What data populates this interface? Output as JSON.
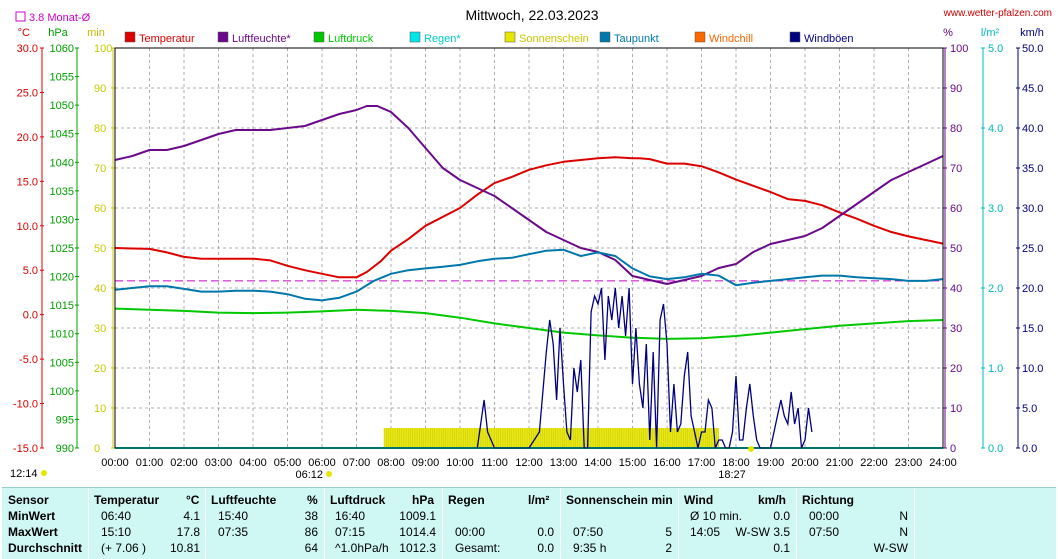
{
  "header": {
    "title": "Mittwoch, 22.03.2023",
    "site": "www.wetter-pfalzen.com",
    "avg_label": "3.8 Monat-Ø",
    "sunrise_time": "06:12",
    "sunset_time": "18:27",
    "sunrise_bottom": "12:14"
  },
  "axes": {
    "temp": {
      "unit": "°C",
      "min": -15,
      "max": 30,
      "ticks": [
        "30.0",
        "25.0",
        "20.0",
        "15.0",
        "10.0",
        "5.0",
        "0.0",
        "-5.0",
        "-10.0",
        "-15.0"
      ]
    },
    "pressure": {
      "unit": "hPa",
      "min": 990,
      "max": 1060,
      "ticks": [
        "1060",
        "1055",
        "1050",
        "1045",
        "1040",
        "1035",
        "1030",
        "1025",
        "1020",
        "1015",
        "1010",
        "1005",
        "1000",
        "995",
        "990"
      ]
    },
    "sun": {
      "unit": "min",
      "min": 0,
      "max": 100,
      "ticks": [
        "100",
        "90",
        "80",
        "70",
        "60",
        "50",
        "40",
        "30",
        "20",
        "10",
        "0"
      ]
    },
    "humidity": {
      "unit": "%",
      "min": 0,
      "max": 100,
      "ticks": [
        "100",
        "90",
        "80",
        "70",
        "60",
        "50",
        "40",
        "30",
        "20",
        "10",
        "0"
      ]
    },
    "rain": {
      "unit": "l/m²",
      "min": 0,
      "max": 5,
      "ticks": [
        "5.0",
        "4.0",
        "3.0",
        "2.0",
        "1.0",
        "0.0"
      ]
    },
    "wind": {
      "unit": "km/h",
      "min": 0,
      "max": 50,
      "ticks": [
        "50.0",
        "45.0",
        "40.0",
        "35.0",
        "30.0",
        "25.0",
        "20.0",
        "15.0",
        "10.0",
        "5.0",
        "0.0"
      ]
    },
    "time_ticks": [
      "00:00",
      "01:00",
      "02:00",
      "03:00",
      "04:00",
      "05:00",
      "06:00",
      "07:00",
      "08:00",
      "09:00",
      "10:00",
      "11:00",
      "12:00",
      "13:00",
      "14:00",
      "15:00",
      "16:00",
      "17:00",
      "18:00",
      "19:00",
      "20:00",
      "21:00",
      "22:00",
      "23:00",
      "24:00"
    ]
  },
  "legend": [
    {
      "label": "Temperatur",
      "color": "#dd0000"
    },
    {
      "label": "Luftfeuchte*",
      "color": "#6a0a8a"
    },
    {
      "label": "Luftdruck",
      "color": "#00c800"
    },
    {
      "label": "Regen*",
      "color": "#00e5e5"
    },
    {
      "label": "Sonnenschein",
      "color": "#e6e600"
    },
    {
      "label": "Taupunkt",
      "color": "#0077aa"
    },
    {
      "label": "Windchill",
      "color": "#ff6600"
    },
    {
      "label": "Windböen",
      "color": "#000080"
    }
  ],
  "chart_data": {
    "type": "line",
    "x_unit": "hour",
    "monthly_avg_temp": 3.8,
    "series": [
      {
        "name": "Temperatur",
        "axis": "temp",
        "color": "#dd0000",
        "x": [
          0,
          1,
          1.5,
          2,
          2.5,
          3,
          4,
          4.5,
          5,
          5.5,
          6,
          6.5,
          7,
          7.3,
          7.7,
          8,
          8.5,
          9,
          10,
          10.5,
          11,
          11.5,
          12,
          12.5,
          13,
          13.5,
          14,
          14.5,
          15,
          15.2,
          15.5,
          16,
          16.5,
          17,
          17.5,
          18,
          18.5,
          19,
          19.5,
          20,
          20.5,
          21,
          21.5,
          22,
          22.5,
          23,
          23.5,
          24
        ],
        "y": [
          7.5,
          7.4,
          7.0,
          6.5,
          6.3,
          6.3,
          6.3,
          6.1,
          5.5,
          5.0,
          4.6,
          4.2,
          4.2,
          4.8,
          6.0,
          7.2,
          8.5,
          10.0,
          12.0,
          13.5,
          14.8,
          15.5,
          16.3,
          16.8,
          17.2,
          17.4,
          17.6,
          17.7,
          17.6,
          17.6,
          17.5,
          17.0,
          17.0,
          16.7,
          16.0,
          15.2,
          14.5,
          13.8,
          13.0,
          12.8,
          12.3,
          11.5,
          10.8,
          10.0,
          9.3,
          8.8,
          8.4,
          8.0
        ]
      },
      {
        "name": "Luftfeuchte*",
        "axis": "humidity",
        "color": "#6a0a8a",
        "x": [
          0,
          0.5,
          1,
          1.5,
          2,
          2.5,
          3,
          3.5,
          4,
          4.5,
          5,
          5.5,
          6,
          6.5,
          7,
          7.3,
          7.6,
          8,
          8.5,
          9,
          9.5,
          10,
          10.5,
          11,
          11.5,
          12,
          12.5,
          13,
          13.5,
          14,
          14.5,
          15,
          15.5,
          16,
          16.5,
          17,
          17.5,
          18,
          18.5,
          19,
          19.5,
          20,
          20.5,
          21,
          21.5,
          22,
          22.5,
          23,
          23.5,
          24
        ],
        "y": [
          72,
          73,
          74.5,
          74.5,
          75.5,
          77,
          78.5,
          79.5,
          79.5,
          79.5,
          80,
          80.5,
          82,
          83.5,
          84.5,
          85.5,
          85.5,
          84,
          80,
          75,
          70,
          67,
          65,
          63,
          60,
          57,
          54,
          52,
          50,
          49,
          47,
          43,
          42,
          41,
          42,
          43,
          45,
          46,
          49,
          51,
          52,
          53,
          55,
          58,
          61,
          64,
          67,
          69,
          71,
          73
        ]
      },
      {
        "name": "Luftdruck",
        "axis": "pressure",
        "color": "#00c800",
        "x": [
          0,
          1,
          2,
          3,
          4,
          5,
          6,
          7,
          8,
          9,
          10,
          11,
          12,
          13,
          14,
          15,
          16,
          17,
          18,
          19,
          20,
          21,
          22,
          23,
          24
        ],
        "y": [
          1014.4,
          1014.2,
          1014.0,
          1013.7,
          1013.6,
          1013.7,
          1013.9,
          1014.2,
          1014.0,
          1013.6,
          1012.8,
          1011.8,
          1011.0,
          1010.2,
          1009.7,
          1009.3,
          1009.1,
          1009.2,
          1009.6,
          1010.2,
          1010.8,
          1011.4,
          1011.8,
          1012.2,
          1012.4
        ]
      },
      {
        "name": "Taupunkt",
        "axis": "temp",
        "color": "#0077aa",
        "x": [
          0,
          0.5,
          1,
          1.5,
          2,
          2.5,
          3,
          3.5,
          4,
          4.5,
          5,
          5.5,
          6,
          6.5,
          7,
          7.5,
          8,
          8.5,
          9,
          9.5,
          10,
          10.5,
          11,
          11.5,
          12,
          12.5,
          13,
          13.5,
          14,
          14.5,
          15,
          15.5,
          16,
          16.5,
          17,
          17.5,
          18,
          18.5,
          19,
          19.5,
          20,
          20.5,
          21,
          21.5,
          22,
          22.5,
          23,
          23.5,
          24
        ],
        "y": [
          2.8,
          3.0,
          3.2,
          3.2,
          2.9,
          2.6,
          2.6,
          2.7,
          2.7,
          2.6,
          2.3,
          1.8,
          1.6,
          1.9,
          2.6,
          3.8,
          4.6,
          5.0,
          5.2,
          5.4,
          5.6,
          6.0,
          6.3,
          6.4,
          6.8,
          7.2,
          7.3,
          6.6,
          7.0,
          6.6,
          5.2,
          4.3,
          4.0,
          4.2,
          4.6,
          4.4,
          3.3,
          3.6,
          3.8,
          4.0,
          4.2,
          4.4,
          4.4,
          4.2,
          4.1,
          4.0,
          3.8,
          3.8,
          4.0
        ]
      },
      {
        "name": "Regen*",
        "axis": "rain",
        "color": "#00e5e5",
        "x": [
          0,
          24
        ],
        "y": [
          0,
          0
        ]
      }
    ],
    "sunshine": {
      "axis": "sun",
      "color": "#e6e600",
      "start": 7.8,
      "end": 17.5,
      "minutes": 5
    },
    "windboeen": {
      "name": "Windböen",
      "axis": "wind",
      "color": "#000080",
      "x": [
        10.5,
        10.6,
        10.7,
        10.8,
        11.0,
        12.0,
        12.3,
        12.5,
        12.6,
        12.7,
        12.8,
        12.9,
        13.0,
        13.1,
        13.2,
        13.3,
        13.4,
        13.5,
        13.6,
        13.7,
        13.8,
        13.9,
        14.0,
        14.1,
        14.2,
        14.3,
        14.4,
        14.5,
        14.6,
        14.7,
        14.8,
        14.9,
        15.0,
        15.1,
        15.2,
        15.3,
        15.4,
        15.5,
        15.6,
        15.7,
        15.8,
        15.9,
        16.0,
        16.1,
        16.2,
        16.3,
        16.4,
        16.5,
        16.6,
        16.7,
        16.8,
        16.9,
        17.0,
        17.1,
        17.2,
        17.3,
        17.4,
        17.5,
        17.6,
        17.7,
        17.8,
        17.9,
        18.0,
        18.1,
        18.2,
        18.3,
        18.4,
        18.5,
        18.6,
        18.7,
        18.8,
        18.9,
        19.0,
        19.1,
        19.2,
        19.3,
        19.4,
        19.5,
        19.6,
        19.7,
        19.8,
        19.9,
        20.0,
        20.1,
        20.2
      ],
      "y": [
        0,
        3,
        6,
        2,
        0,
        0,
        2,
        12,
        16,
        13,
        6,
        15,
        8,
        2,
        1,
        10,
        7,
        11,
        0,
        0,
        17,
        19,
        18,
        20,
        11,
        19,
        16,
        20,
        15,
        19,
        14,
        20,
        8,
        15,
        8,
        5,
        13,
        1,
        12,
        0,
        16,
        18,
        13,
        2,
        8,
        2,
        3,
        9,
        12,
        4,
        2,
        0,
        2,
        2,
        6,
        5,
        0,
        1,
        1,
        0,
        0,
        2,
        9,
        1,
        1,
        5,
        8,
        4,
        1,
        0,
        0,
        0,
        0,
        2,
        4,
        6,
        4,
        3,
        7,
        3,
        5,
        0,
        1,
        5,
        2
      ]
    }
  },
  "stats": {
    "headers": {
      "sensor": "Sensor",
      "temp": "Temperatur",
      "temp_unit": "°C",
      "hum": "Luftfeuchte",
      "hum_unit": "%",
      "press": "Luftdruck",
      "press_unit": "hPa",
      "rain": "Regen",
      "rain_unit": "l/m²",
      "sun": "Sonnenschein min",
      "wind": "Wind",
      "wind_unit": "km/h",
      "dir": "Richtung"
    },
    "rows": [
      {
        "label": "MinWert",
        "t_time": "06:40",
        "t_val": "4.1",
        "h_time": "15:40",
        "h_val": "38",
        "p_time": "16:40",
        "p_val": "1009.1",
        "r_time": "",
        "r_val": "",
        "s_time": "",
        "s_val": "",
        "w_time": "Ø 10 min.",
        "w_val": "0.0",
        "d_time": "00:00",
        "d_val": "N"
      },
      {
        "label": "MaxWert",
        "t_time": "15:10",
        "t_val": "17.8",
        "h_time": "07:35",
        "h_val": "86",
        "p_time": "07:15",
        "p_val": "1014.4",
        "r_time": "00:00",
        "r_val": "0.0",
        "s_time": "07:50",
        "s_val": "5",
        "w_time": "14:05",
        "w_val": "W-SW 3.5",
        "d_time": "07:50",
        "d_val": "N"
      },
      {
        "label": "Durchschnitt",
        "t_time": "(+ 7.06 )",
        "t_val": "10.81",
        "h_time": "",
        "h_val": "64",
        "p_time": "^1.0hPa/h",
        "p_val": "1012.3",
        "r_time": "Gesamt:",
        "r_val": "0.0",
        "s_time": "9:35 h",
        "s_val": "2",
        "w_time": "",
        "w_val": "0.1",
        "d_time": "",
        "d_val": "W-SW"
      }
    ]
  }
}
